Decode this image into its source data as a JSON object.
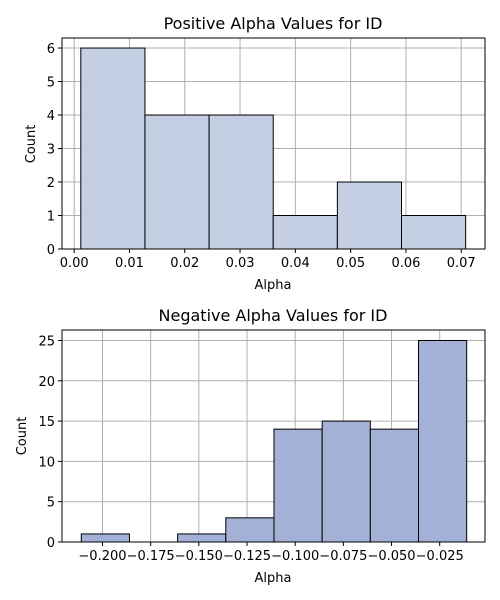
{
  "chart_data": [
    {
      "type": "bar",
      "title": "Positive Alpha Values for ID",
      "xlabel": "Alpha",
      "ylabel": "Count",
      "bin_edges": [
        0.0012,
        0.0128,
        0.0244,
        0.036,
        0.0476,
        0.0592,
        0.0708
      ],
      "values": [
        6,
        4,
        4,
        1,
        2,
        1
      ],
      "xlim": [
        -0.0022,
        0.0743
      ],
      "ylim": [
        0,
        6.3
      ],
      "xticks": [
        0.0,
        0.01,
        0.02,
        0.03,
        0.04,
        0.05,
        0.06,
        0.07
      ],
      "xtick_labels": [
        "0.00",
        "0.01",
        "0.02",
        "0.03",
        "0.04",
        "0.05",
        "0.06",
        "0.07"
      ],
      "yticks": [
        0,
        1,
        2,
        3,
        4,
        5,
        6
      ],
      "ytick_labels": [
        "0",
        "1",
        "2",
        "3",
        "4",
        "5",
        "6"
      ],
      "grid": true,
      "bar_color": "#c4cfe3",
      "edge_color": "#000000"
    },
    {
      "type": "bar",
      "title": "Negative Alpha Values for ID",
      "xlabel": "Alpha",
      "ylabel": "Count",
      "bin_edges": [
        -0.211,
        -0.186,
        -0.161,
        -0.136,
        -0.111,
        -0.086,
        -0.061,
        -0.036,
        -0.011
      ],
      "values": [
        1,
        0,
        1,
        3,
        14,
        15,
        14,
        25
      ],
      "xlim": [
        -0.221,
        -0.0015
      ],
      "ylim": [
        0,
        26.3
      ],
      "xticks": [
        -0.2,
        -0.175,
        -0.15,
        -0.125,
        -0.1,
        -0.075,
        -0.05,
        -0.025
      ],
      "xtick_labels": [
        "−0.200",
        "−0.175",
        "−0.150",
        "−0.125",
        "−0.100",
        "−0.075",
        "−0.050",
        "−0.025"
      ],
      "yticks": [
        0,
        5,
        10,
        15,
        20,
        25
      ],
      "ytick_labels": [
        "0",
        "5",
        "10",
        "15",
        "20",
        "25"
      ],
      "grid": true,
      "bar_color": "#a4b1d6",
      "edge_color": "#000000"
    }
  ]
}
